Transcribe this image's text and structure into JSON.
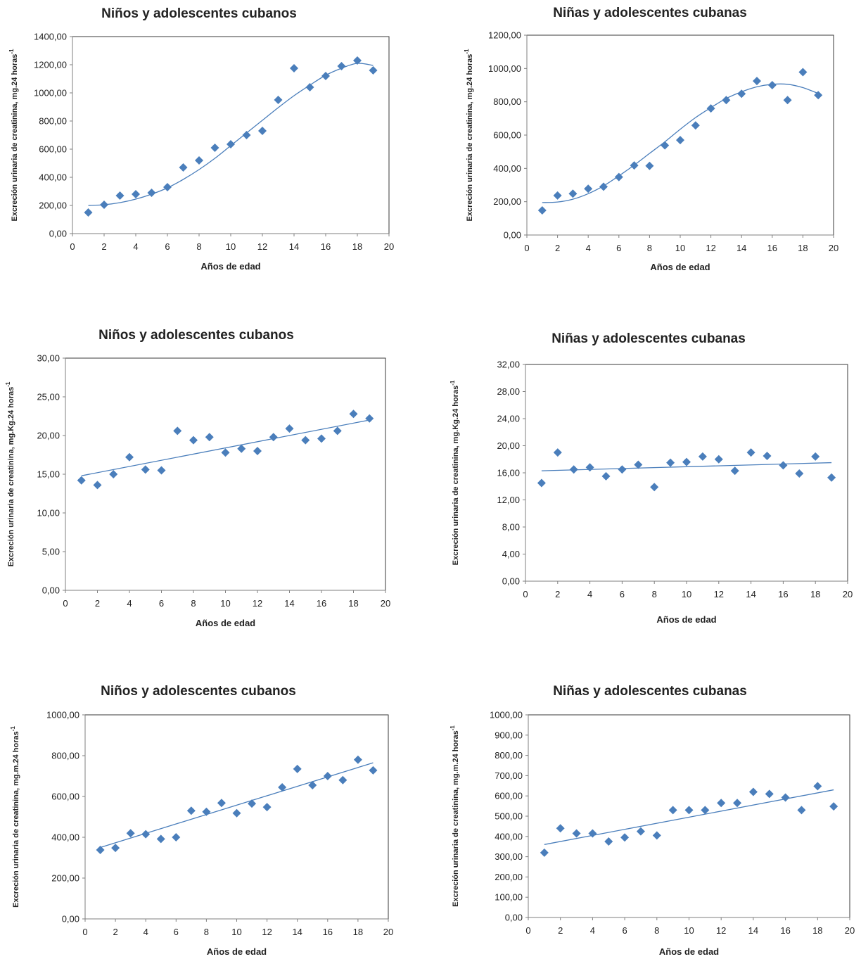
{
  "colors": {
    "marker": "#4a7ebb",
    "trendline": "#4a7ebb",
    "axis": "#7f7f7f",
    "frame": "#3a3a3a"
  },
  "chart_data": [
    {
      "type": "scatter",
      "title": "Niños y adolescentes cubanos",
      "xlabel": "Años de edad",
      "ylabel": "Excreción urinaria de creatinina, mg.24 horas",
      "ylabel_sup": "-1",
      "xlim": [
        0,
        20
      ],
      "ylim": [
        0,
        1400
      ],
      "x_ticks": [
        0,
        2,
        4,
        6,
        8,
        10,
        12,
        14,
        16,
        18,
        20
      ],
      "x_tick_labels": [
        "0",
        "2",
        "4",
        "6",
        "8",
        "10",
        "12",
        "14",
        "16",
        "18",
        "20"
      ],
      "y_ticks": [
        0,
        200,
        400,
        600,
        800,
        1000,
        1200,
        1400
      ],
      "y_tick_labels": [
        "0,00",
        "200,00",
        "400,00",
        "600,00",
        "800,00",
        "1000,00",
        "1200,00",
        "1400,00"
      ],
      "grid": false,
      "marker": "diamond",
      "trendline": "polynomial",
      "x": [
        1,
        2,
        3,
        4,
        5,
        6,
        7,
        8,
        9,
        10,
        11,
        12,
        13,
        14,
        15,
        16,
        17,
        18,
        19
      ],
      "y": [
        150,
        205,
        270,
        280,
        290,
        330,
        470,
        520,
        610,
        635,
        700,
        730,
        950,
        1175,
        1040,
        1120,
        1190,
        1230,
        1160
      ],
      "trend_x": [
        1,
        2,
        3,
        4,
        5,
        6,
        7,
        8,
        9,
        10,
        11,
        12,
        13,
        14,
        15,
        16,
        17,
        18,
        19
      ],
      "trend_y": [
        200,
        205,
        220,
        245,
        280,
        325,
        385,
        455,
        535,
        625,
        715,
        805,
        895,
        980,
        1055,
        1125,
        1175,
        1210,
        1195
      ]
    },
    {
      "type": "scatter",
      "title": "Niñas y adolescentes cubanas",
      "xlabel": "Años de edad",
      "ylabel": "Excreción urinaria de creatinina, mg.24 horas",
      "ylabel_sup": "-1",
      "xlim": [
        0,
        20
      ],
      "ylim": [
        0,
        1200
      ],
      "x_ticks": [
        0,
        2,
        4,
        6,
        8,
        10,
        12,
        14,
        16,
        18,
        20
      ],
      "x_tick_labels": [
        "0",
        "2",
        "4",
        "6",
        "8",
        "10",
        "12",
        "14",
        "16",
        "18",
        "20"
      ],
      "y_ticks": [
        0,
        200,
        400,
        600,
        800,
        1000,
        1200
      ],
      "y_tick_labels": [
        "0,00",
        "200,00",
        "400,00",
        "600,00",
        "800,00",
        "1000,00",
        "1200,00"
      ],
      "grid": false,
      "marker": "diamond",
      "trendline": "polynomial",
      "x": [
        1,
        2,
        3,
        4,
        5,
        6,
        7,
        8,
        9,
        10,
        11,
        12,
        13,
        14,
        15,
        16,
        17,
        18,
        19
      ],
      "y": [
        148,
        237,
        248,
        278,
        290,
        348,
        418,
        415,
        538,
        570,
        658,
        760,
        810,
        848,
        925,
        900,
        810,
        978,
        840
      ],
      "trend_x": [
        1,
        2,
        3,
        4,
        5,
        6,
        7,
        8,
        9,
        10,
        11,
        12,
        13,
        14,
        15,
        16,
        17,
        18,
        19
      ],
      "trend_y": [
        195,
        198,
        215,
        248,
        295,
        355,
        420,
        490,
        560,
        635,
        705,
        765,
        820,
        860,
        890,
        905,
        905,
        885,
        850
      ]
    },
    {
      "type": "scatter",
      "title": "Niños  y adolescentes cubanos",
      "xlabel": "Años de edad",
      "ylabel": "Excreción urinaria de creatinina, mg.Kg.24 horas",
      "ylabel_sup": "-1",
      "xlim": [
        0,
        20
      ],
      "ylim": [
        0,
        30
      ],
      "x_ticks": [
        0,
        2,
        4,
        6,
        8,
        10,
        12,
        14,
        16,
        18,
        20
      ],
      "x_tick_labels": [
        "0",
        "2",
        "4",
        "6",
        "8",
        "10",
        "12",
        "14",
        "16",
        "18",
        "20"
      ],
      "y_ticks": [
        0,
        5,
        10,
        15,
        20,
        25,
        30
      ],
      "y_tick_labels": [
        "0,00",
        "5,00",
        "10,00",
        "15,00",
        "20,00",
        "25,00",
        "30,00"
      ],
      "grid": false,
      "marker": "diamond",
      "trendline": "linear",
      "x": [
        1,
        2,
        3,
        4,
        5,
        6,
        7,
        8,
        9,
        10,
        11,
        12,
        13,
        14,
        15,
        16,
        17,
        18,
        19
      ],
      "y": [
        14.2,
        13.6,
        15.0,
        17.2,
        15.6,
        15.5,
        20.6,
        19.4,
        19.8,
        17.8,
        18.3,
        18.0,
        19.8,
        20.9,
        19.4,
        19.6,
        20.6,
        22.8,
        22.2
      ],
      "trend_x": [
        1,
        19
      ],
      "trend_y": [
        14.8,
        22.0
      ]
    },
    {
      "type": "scatter",
      "title": "Niñas y adolescentes cubanas",
      "xlabel": "Años de edad",
      "ylabel": "Excreción urinaria de creatinina, mg.Kg.24 horas",
      "ylabel_sup": "-1",
      "xlim": [
        0,
        20
      ],
      "ylim": [
        0,
        32
      ],
      "x_ticks": [
        0,
        2,
        4,
        6,
        8,
        10,
        12,
        14,
        16,
        18,
        20
      ],
      "x_tick_labels": [
        "0",
        "2",
        "4",
        "6",
        "8",
        "10",
        "12",
        "14",
        "16",
        "18",
        "20"
      ],
      "y_ticks": [
        0,
        4,
        8,
        12,
        16,
        20,
        24,
        28,
        32
      ],
      "y_tick_labels": [
        "0,00",
        "4,00",
        "8,00",
        "12,00",
        "16,00",
        "20,00",
        "24,00",
        "28,00",
        "32,00"
      ],
      "grid": false,
      "marker": "diamond",
      "trendline": "linear",
      "x": [
        1,
        2,
        3,
        4,
        5,
        6,
        7,
        8,
        9,
        10,
        11,
        12,
        13,
        14,
        15,
        16,
        17,
        18,
        19
      ],
      "y": [
        14.5,
        19.0,
        16.5,
        16.8,
        15.5,
        16.5,
        17.2,
        13.9,
        17.5,
        17.6,
        18.4,
        18.0,
        16.3,
        19.0,
        18.5,
        17.1,
        15.9,
        18.4,
        15.3
      ],
      "trend_x": [
        1,
        19
      ],
      "trend_y": [
        16.3,
        17.5
      ]
    },
    {
      "type": "scatter",
      "title": "Niños y adolescentes cubanos",
      "xlabel": "Años de edad",
      "ylabel": "Excreción urinaria de creatinina, mg.m.24 horas",
      "ylabel_sup": "-1",
      "xlim": [
        0,
        20
      ],
      "ylim": [
        0,
        1000
      ],
      "x_ticks": [
        0,
        2,
        4,
        6,
        8,
        10,
        12,
        14,
        16,
        18,
        20
      ],
      "x_tick_labels": [
        "0",
        "2",
        "4",
        "6",
        "8",
        "10",
        "12",
        "14",
        "16",
        "18",
        "20"
      ],
      "y_ticks": [
        0,
        200,
        400,
        600,
        800,
        1000
      ],
      "y_tick_labels": [
        "0,00",
        "200,00",
        "400,00",
        "600,00",
        "800,00",
        "1000,00"
      ],
      "grid": false,
      "marker": "diamond",
      "trendline": "linear",
      "x": [
        1,
        2,
        3,
        4,
        5,
        6,
        7,
        8,
        9,
        10,
        11,
        12,
        13,
        14,
        15,
        16,
        17,
        18,
        19
      ],
      "y": [
        338,
        348,
        420,
        415,
        392,
        400,
        530,
        525,
        568,
        518,
        565,
        548,
        645,
        735,
        655,
        700,
        680,
        780,
        728
      ],
      "trend_x": [
        1,
        19
      ],
      "trend_y": [
        350,
        765
      ]
    },
    {
      "type": "scatter",
      "title": "Niñas y adolescentes cubanas",
      "xlabel": "Años de edad",
      "ylabel": "Excreción urinaria de creatinina, mg.m.24 horas",
      "ylabel_sup": "-1",
      "xlim": [
        0,
        20
      ],
      "ylim": [
        0,
        1000
      ],
      "x_ticks": [
        0,
        2,
        4,
        6,
        8,
        10,
        12,
        14,
        16,
        18,
        20
      ],
      "x_tick_labels": [
        "0",
        "2",
        "4",
        "6",
        "8",
        "10",
        "12",
        "14",
        "16",
        "18",
        "20"
      ],
      "y_ticks": [
        0,
        100,
        200,
        300,
        400,
        500,
        600,
        700,
        800,
        900,
        1000
      ],
      "y_tick_labels": [
        "0,00",
        "100,00",
        "200,00",
        "300,00",
        "400,00",
        "500,00",
        "600,00",
        "700,00",
        "800,00",
        "900,00",
        "1000,00"
      ],
      "grid": false,
      "marker": "diamond",
      "trendline": "linear",
      "x": [
        1,
        2,
        3,
        4,
        5,
        6,
        7,
        8,
        9,
        10,
        11,
        12,
        13,
        14,
        15,
        16,
        17,
        18,
        19
      ],
      "y": [
        320,
        440,
        415,
        415,
        375,
        395,
        425,
        405,
        530,
        530,
        530,
        565,
        565,
        620,
        610,
        592,
        530,
        648,
        548
      ],
      "trend_x": [
        1,
        19
      ],
      "trend_y": [
        360,
        630
      ]
    }
  ]
}
